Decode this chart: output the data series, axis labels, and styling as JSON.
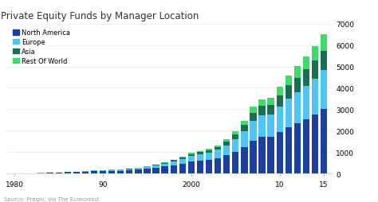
{
  "title": "Private Equity Funds by Manager Location",
  "source": "Source: Preqin, via The Economist",
  "years": [
    1980,
    1981,
    1982,
    1983,
    1984,
    1985,
    1986,
    1987,
    1988,
    1989,
    1990,
    1991,
    1992,
    1993,
    1994,
    1995,
    1996,
    1997,
    1998,
    1999,
    2000,
    2001,
    2002,
    2003,
    2004,
    2005,
    2006,
    2007,
    2008,
    2009,
    2010,
    2011,
    2012,
    2013,
    2014,
    2015
  ],
  "north_america": [
    15,
    18,
    20,
    25,
    30,
    38,
    50,
    68,
    88,
    110,
    120,
    128,
    140,
    160,
    185,
    220,
    270,
    330,
    400,
    470,
    560,
    610,
    660,
    730,
    850,
    1030,
    1250,
    1530,
    1700,
    1730,
    1950,
    2180,
    2350,
    2550,
    2750,
    3000
  ],
  "europe": [
    3,
    4,
    5,
    6,
    8,
    10,
    14,
    18,
    24,
    32,
    36,
    40,
    46,
    55,
    68,
    84,
    105,
    135,
    175,
    215,
    270,
    295,
    325,
    380,
    460,
    570,
    720,
    920,
    1010,
    1030,
    1160,
    1320,
    1430,
    1550,
    1680,
    1820
  ],
  "asia": [
    0,
    0,
    1,
    1,
    1,
    2,
    3,
    4,
    5,
    7,
    8,
    9,
    11,
    14,
    17,
    21,
    27,
    37,
    50,
    68,
    88,
    100,
    115,
    135,
    175,
    230,
    300,
    390,
    445,
    455,
    540,
    635,
    700,
    770,
    840,
    920
  ],
  "rest_of_world": [
    0,
    0,
    0,
    0,
    1,
    1,
    1,
    2,
    2,
    3,
    4,
    4,
    5,
    7,
    8,
    10,
    14,
    18,
    26,
    37,
    50,
    58,
    67,
    80,
    108,
    150,
    205,
    270,
    310,
    320,
    390,
    455,
    525,
    595,
    660,
    750
  ],
  "colors": {
    "north_america": "#1c3fa0",
    "europe": "#4dc5f5",
    "asia": "#1a6e52",
    "rest_of_world": "#3ddb6a"
  },
  "ylim": [
    0,
    7000
  ],
  "yticks": [
    0,
    1000,
    2000,
    3000,
    4000,
    5000,
    6000,
    7000
  ],
  "xtick_labels": [
    "1980",
    "90",
    "2000",
    "10",
    "15"
  ],
  "xtick_positions": [
    1980,
    1990,
    2000,
    2010,
    2015
  ],
  "legend_labels": [
    "North America",
    "Europe",
    "Asia",
    "Rest Of World"
  ],
  "background_color": "#ffffff",
  "grid_color": "#e8e8e8",
  "title_fontsize": 8.5,
  "axis_fontsize": 6.5,
  "legend_fontsize": 6.0,
  "source_fontsize": 5.0
}
